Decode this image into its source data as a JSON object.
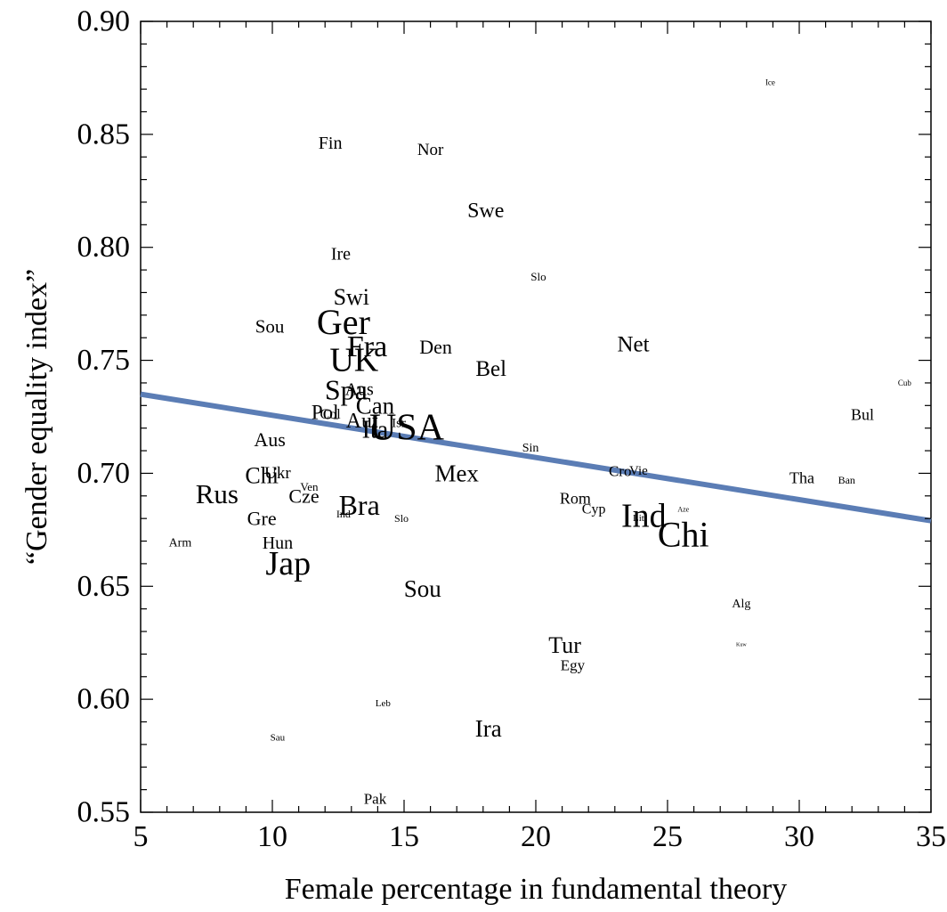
{
  "chart_data": {
    "type": "scatter",
    "title": "",
    "xlabel": "Female percentage in fundamental theory",
    "ylabel": "“Gender equality index”",
    "xlim": [
      5,
      35
    ],
    "ylim": [
      0.55,
      0.9
    ],
    "x_ticks": [
      {
        "value": 5,
        "label": "5"
      },
      {
        "value": 10,
        "label": "10"
      },
      {
        "value": 15,
        "label": "15"
      },
      {
        "value": 20,
        "label": "20"
      },
      {
        "value": 25,
        "label": "25"
      },
      {
        "value": 30,
        "label": "30"
      },
      {
        "value": 35,
        "label": "35"
      }
    ],
    "y_ticks": [
      {
        "value": 0.55,
        "label": "0.55"
      },
      {
        "value": 0.6,
        "label": "0.60"
      },
      {
        "value": 0.65,
        "label": "0.65"
      },
      {
        "value": 0.7,
        "label": "0.70"
      },
      {
        "value": 0.75,
        "label": "0.75"
      },
      {
        "value": 0.8,
        "label": "0.80"
      },
      {
        "value": 0.85,
        "label": "0.85"
      },
      {
        "value": 0.9,
        "label": "0.90"
      }
    ],
    "grid": false,
    "trend_line": {
      "x": [
        5,
        35
      ],
      "y": [
        0.735,
        0.679
      ],
      "color": "#5b7db5"
    },
    "points": [
      {
        "label": "Ice",
        "x": 28.9,
        "y": 0.873,
        "size": 9
      },
      {
        "label": "Fin",
        "x": 12.2,
        "y": 0.846,
        "size": 20
      },
      {
        "label": "Nor",
        "x": 16.0,
        "y": 0.843,
        "size": 19
      },
      {
        "label": "Swe",
        "x": 18.1,
        "y": 0.816,
        "size": 24
      },
      {
        "label": "Ire",
        "x": 12.6,
        "y": 0.797,
        "size": 20
      },
      {
        "label": "Slo",
        "x": 20.1,
        "y": 0.787,
        "size": 13
      },
      {
        "label": "Swi",
        "x": 13.0,
        "y": 0.778,
        "size": 26
      },
      {
        "label": "Sou",
        "x": 9.9,
        "y": 0.765,
        "size": 21
      },
      {
        "label": "Ger",
        "x": 12.7,
        "y": 0.767,
        "size": 40
      },
      {
        "label": "Fra",
        "x": 13.6,
        "y": 0.756,
        "size": 34
      },
      {
        "label": "UK",
        "x": 13.1,
        "y": 0.75,
        "size": 38
      },
      {
        "label": "Den",
        "x": 16.2,
        "y": 0.756,
        "size": 22
      },
      {
        "label": "Net",
        "x": 23.7,
        "y": 0.757,
        "size": 25
      },
      {
        "label": "Bel",
        "x": 18.3,
        "y": 0.746,
        "size": 25
      },
      {
        "label": "Spa",
        "x": 12.8,
        "y": 0.737,
        "size": 32
      },
      {
        "label": "Aus",
        "x": 13.3,
        "y": 0.737,
        "size": 20
      },
      {
        "label": "Can",
        "x": 13.9,
        "y": 0.73,
        "size": 27
      },
      {
        "label": "Cub",
        "x": 34.0,
        "y": 0.74,
        "size": 9
      },
      {
        "label": "Pol",
        "x": 12.0,
        "y": 0.727,
        "size": 23
      },
      {
        "label": "Col",
        "x": 12.2,
        "y": 0.726,
        "size": 16
      },
      {
        "label": "Aut",
        "x": 13.4,
        "y": 0.723,
        "size": 24
      },
      {
        "label": "USA",
        "x": 15.1,
        "y": 0.72,
        "size": 42
      },
      {
        "label": "Ita",
        "x": 13.9,
        "y": 0.719,
        "size": 28
      },
      {
        "label": "Isr",
        "x": 14.8,
        "y": 0.722,
        "size": 15
      },
      {
        "label": "Bul",
        "x": 32.4,
        "y": 0.726,
        "size": 18
      },
      {
        "label": "Aus",
        "x": 9.9,
        "y": 0.715,
        "size": 22
      },
      {
        "label": "Sin",
        "x": 19.8,
        "y": 0.711,
        "size": 14
      },
      {
        "label": "Mex",
        "x": 17.0,
        "y": 0.7,
        "size": 27
      },
      {
        "label": "Chi",
        "x": 9.6,
        "y": 0.699,
        "size": 26
      },
      {
        "label": "Ukr",
        "x": 10.2,
        "y": 0.7,
        "size": 19
      },
      {
        "label": "Cro",
        "x": 23.2,
        "y": 0.701,
        "size": 17
      },
      {
        "label": "Vie",
        "x": 23.9,
        "y": 0.701,
        "size": 15
      },
      {
        "label": "Tha",
        "x": 30.1,
        "y": 0.698,
        "size": 18
      },
      {
        "label": "Ban",
        "x": 31.8,
        "y": 0.697,
        "size": 12
      },
      {
        "label": "Rus",
        "x": 7.9,
        "y": 0.691,
        "size": 31
      },
      {
        "label": "Ven",
        "x": 11.4,
        "y": 0.694,
        "size": 13
      },
      {
        "label": "Cze",
        "x": 11.2,
        "y": 0.69,
        "size": 22
      },
      {
        "label": "Bra",
        "x": 13.3,
        "y": 0.686,
        "size": 32
      },
      {
        "label": "Rom",
        "x": 21.5,
        "y": 0.689,
        "size": 18
      },
      {
        "label": "Cyp",
        "x": 22.2,
        "y": 0.684,
        "size": 16
      },
      {
        "label": "Ind",
        "x": 24.1,
        "y": 0.681,
        "size": 38
      },
      {
        "label": "Lit",
        "x": 23.9,
        "y": 0.68,
        "size": 11
      },
      {
        "label": "Aze",
        "x": 25.6,
        "y": 0.684,
        "size": 8
      },
      {
        "label": "Chi",
        "x": 25.6,
        "y": 0.673,
        "size": 40
      },
      {
        "label": "Ind",
        "x": 12.7,
        "y": 0.682,
        "size": 12
      },
      {
        "label": "Slo",
        "x": 14.9,
        "y": 0.68,
        "size": 12
      },
      {
        "label": "Gre",
        "x": 9.6,
        "y": 0.68,
        "size": 22
      },
      {
        "label": "Arm",
        "x": 6.5,
        "y": 0.669,
        "size": 14
      },
      {
        "label": "Hun",
        "x": 10.2,
        "y": 0.669,
        "size": 20
      },
      {
        "label": "Jap",
        "x": 10.6,
        "y": 0.66,
        "size": 38
      },
      {
        "label": "Sou",
        "x": 15.7,
        "y": 0.649,
        "size": 27
      },
      {
        "label": "Alg",
        "x": 27.8,
        "y": 0.642,
        "size": 14
      },
      {
        "label": "Kuw",
        "x": 27.8,
        "y": 0.624,
        "size": 6
      },
      {
        "label": "Tur",
        "x": 21.1,
        "y": 0.624,
        "size": 26
      },
      {
        "label": "Egy",
        "x": 21.4,
        "y": 0.615,
        "size": 17
      },
      {
        "label": "Leb",
        "x": 14.2,
        "y": 0.598,
        "size": 11
      },
      {
        "label": "Ira",
        "x": 18.2,
        "y": 0.587,
        "size": 27
      },
      {
        "label": "Sau",
        "x": 10.2,
        "y": 0.583,
        "size": 11
      },
      {
        "label": "Pak",
        "x": 13.9,
        "y": 0.556,
        "size": 17
      }
    ]
  }
}
